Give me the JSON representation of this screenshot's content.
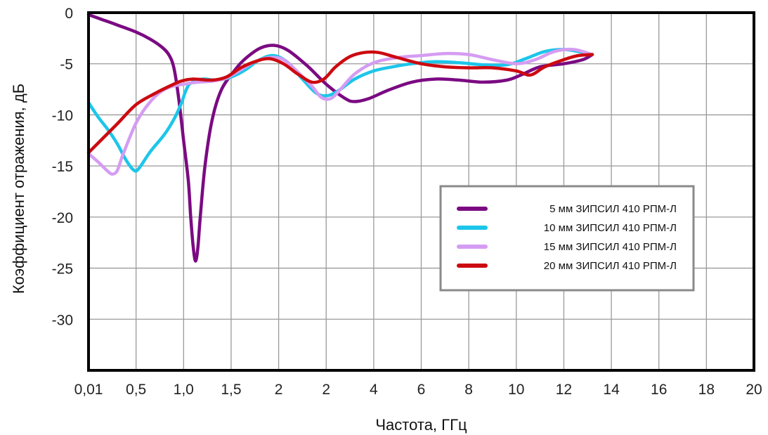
{
  "chart_data": {
    "type": "line",
    "xlabel": "Частота, ГГц",
    "ylabel": "Коэффициент отражения, дБ",
    "x_tick_labels": [
      "0,01",
      "0,5",
      "1,0",
      "1,5",
      "2",
      "2",
      "4",
      "6",
      "8",
      "10",
      "12",
      "14",
      "16",
      "18",
      "20"
    ],
    "y_tick_labels": [
      "0",
      "-5",
      "-10",
      "-15",
      "-20",
      "-25",
      "-30"
    ],
    "y_ticks": [
      0,
      -5,
      -10,
      -15,
      -20,
      -25,
      -30
    ],
    "ylim": [
      -35,
      0
    ],
    "grid": true,
    "legend_position": "right-center",
    "series": [
      {
        "name": "5 мм ЗИПСИЛ 410 РПМ-Л",
        "color": "#7b0a82",
        "points": [
          [
            0.0,
            -0.2
          ],
          [
            0.3,
            -0.7
          ],
          [
            0.6,
            -1.2
          ],
          [
            1.0,
            -1.9
          ],
          [
            1.3,
            -2.6
          ],
          [
            1.55,
            -3.4
          ],
          [
            1.7,
            -4.2
          ],
          [
            1.8,
            -5.5
          ],
          [
            1.9,
            -8.5
          ],
          [
            2.0,
            -12.5
          ],
          [
            2.1,
            -16.5
          ],
          [
            2.15,
            -20
          ],
          [
            2.2,
            -22.8
          ],
          [
            2.25,
            -24.3
          ],
          [
            2.3,
            -23
          ],
          [
            2.35,
            -20
          ],
          [
            2.45,
            -15
          ],
          [
            2.6,
            -10.5
          ],
          [
            2.8,
            -7.5
          ],
          [
            3.1,
            -5.5
          ],
          [
            3.3,
            -4.5
          ],
          [
            3.6,
            -3.5
          ],
          [
            3.9,
            -3.2
          ],
          [
            4.2,
            -3.7
          ],
          [
            4.6,
            -5.2
          ],
          [
            5.0,
            -7.0
          ],
          [
            5.4,
            -8.4
          ],
          [
            5.6,
            -8.7
          ],
          [
            5.9,
            -8.4
          ],
          [
            6.3,
            -7.6
          ],
          [
            6.8,
            -6.8
          ],
          [
            7.3,
            -6.5
          ],
          [
            7.8,
            -6.6
          ],
          [
            8.3,
            -6.8
          ],
          [
            8.8,
            -6.6
          ],
          [
            9.1,
            -6.1
          ],
          [
            9.5,
            -5.3
          ],
          [
            10.0,
            -5.0
          ],
          [
            10.4,
            -4.6
          ],
          [
            10.6,
            -4.1
          ]
        ]
      },
      {
        "name": "10 мм ЗИПСИЛ 410 РПМ-Л",
        "color": "#1cc6ea",
        "points": [
          [
            0.0,
            -8.8
          ],
          [
            0.2,
            -10.2
          ],
          [
            0.4,
            -11.4
          ],
          [
            0.6,
            -12.8
          ],
          [
            0.8,
            -14.5
          ],
          [
            0.95,
            -15.4
          ],
          [
            1.05,
            -15.3
          ],
          [
            1.3,
            -13.6
          ],
          [
            1.6,
            -11.9
          ],
          [
            1.8,
            -10.4
          ],
          [
            1.95,
            -8.9
          ],
          [
            2.05,
            -7.6
          ],
          [
            2.15,
            -6.9
          ],
          [
            2.4,
            -6.5
          ],
          [
            2.7,
            -6.6
          ],
          [
            3.0,
            -6.3
          ],
          [
            3.3,
            -5.6
          ],
          [
            3.6,
            -4.6
          ],
          [
            3.9,
            -4.2
          ],
          [
            4.2,
            -4.9
          ],
          [
            4.5,
            -6.5
          ],
          [
            4.8,
            -7.9
          ],
          [
            5.05,
            -8.1
          ],
          [
            5.3,
            -7.5
          ],
          [
            5.6,
            -6.5
          ],
          [
            6.0,
            -5.7
          ],
          [
            6.4,
            -5.3
          ],
          [
            6.8,
            -5.0
          ],
          [
            7.3,
            -4.8
          ],
          [
            7.8,
            -4.9
          ],
          [
            8.3,
            -5.1
          ],
          [
            8.8,
            -5.1
          ],
          [
            9.2,
            -4.5
          ],
          [
            9.6,
            -3.8
          ],
          [
            10.0,
            -3.6
          ],
          [
            10.3,
            -3.8
          ],
          [
            10.6,
            -4.1
          ]
        ]
      },
      {
        "name": "15 мм ЗИПСИЛ 410 РПМ-Л",
        "color": "#d59cf2",
        "points": [
          [
            0.0,
            -13.8
          ],
          [
            0.2,
            -14.6
          ],
          [
            0.4,
            -15.5
          ],
          [
            0.5,
            -15.8
          ],
          [
            0.6,
            -15.5
          ],
          [
            0.7,
            -14.2
          ],
          [
            0.85,
            -12.4
          ],
          [
            1.0,
            -10.8
          ],
          [
            1.2,
            -9.3
          ],
          [
            1.45,
            -8.0
          ],
          [
            1.7,
            -7.3
          ],
          [
            2.0,
            -7.0
          ],
          [
            2.3,
            -6.8
          ],
          [
            2.6,
            -6.7
          ],
          [
            2.9,
            -6.4
          ],
          [
            3.2,
            -5.6
          ],
          [
            3.5,
            -4.8
          ],
          [
            3.8,
            -4.4
          ],
          [
            4.1,
            -4.6
          ],
          [
            4.4,
            -5.8
          ],
          [
            4.7,
            -7.2
          ],
          [
            4.9,
            -8.3
          ],
          [
            5.1,
            -8.4
          ],
          [
            5.3,
            -7.5
          ],
          [
            5.6,
            -6.0
          ],
          [
            6.0,
            -4.9
          ],
          [
            6.5,
            -4.4
          ],
          [
            7.0,
            -4.2
          ],
          [
            7.5,
            -4.0
          ],
          [
            8.0,
            -4.1
          ],
          [
            8.5,
            -4.6
          ],
          [
            9.0,
            -5.0
          ],
          [
            9.4,
            -4.6
          ],
          [
            9.8,
            -3.8
          ],
          [
            10.2,
            -3.6
          ],
          [
            10.6,
            -4.1
          ]
        ]
      },
      {
        "name": "20 мм ЗИПСИЛ 410 РПМ-Л",
        "color": "#cc0a10",
        "points": [
          [
            0.0,
            -13.7
          ],
          [
            0.3,
            -12.3
          ],
          [
            0.6,
            -10.9
          ],
          [
            1.0,
            -9.0
          ],
          [
            1.4,
            -7.9
          ],
          [
            1.7,
            -7.2
          ],
          [
            1.95,
            -6.7
          ],
          [
            2.2,
            -6.5
          ],
          [
            2.6,
            -6.6
          ],
          [
            2.9,
            -6.3
          ],
          [
            3.2,
            -5.4
          ],
          [
            3.5,
            -4.8
          ],
          [
            3.8,
            -4.5
          ],
          [
            4.1,
            -5.0
          ],
          [
            4.4,
            -6.0
          ],
          [
            4.7,
            -6.8
          ],
          [
            4.95,
            -6.5
          ],
          [
            5.2,
            -5.3
          ],
          [
            5.5,
            -4.3
          ],
          [
            5.8,
            -3.9
          ],
          [
            6.1,
            -3.9
          ],
          [
            6.5,
            -4.4
          ],
          [
            7.0,
            -5.0
          ],
          [
            7.5,
            -5.3
          ],
          [
            8.0,
            -5.4
          ],
          [
            8.5,
            -5.4
          ],
          [
            9.0,
            -5.7
          ],
          [
            9.3,
            -6.1
          ],
          [
            9.6,
            -5.3
          ],
          [
            10.0,
            -4.6
          ],
          [
            10.3,
            -4.2
          ],
          [
            10.6,
            -4.1
          ]
        ]
      }
    ]
  }
}
